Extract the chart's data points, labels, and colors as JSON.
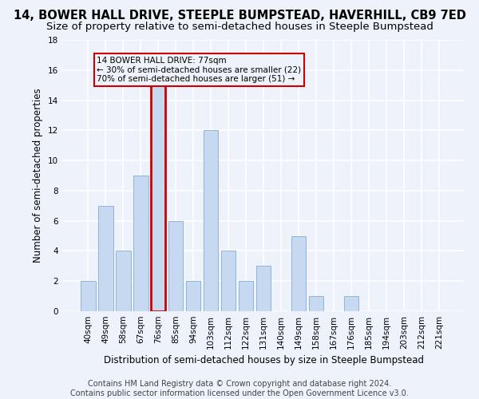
{
  "title": "14, BOWER HALL DRIVE, STEEPLE BUMPSTEAD, HAVERHILL, CB9 7ED",
  "subtitle": "Size of property relative to semi-detached houses in Steeple Bumpstead",
  "xlabel": "Distribution of semi-detached houses by size in Steeple Bumpstead",
  "ylabel": "Number of semi-detached properties",
  "footer": "Contains HM Land Registry data © Crown copyright and database right 2024.\nContains public sector information licensed under the Open Government Licence v3.0.",
  "categories": [
    "40sqm",
    "49sqm",
    "58sqm",
    "67sqm",
    "76sqm",
    "85sqm",
    "94sqm",
    "103sqm",
    "112sqm",
    "122sqm",
    "131sqm",
    "140sqm",
    "149sqm",
    "158sqm",
    "167sqm",
    "176sqm",
    "185sqm",
    "194sqm",
    "203sqm",
    "212sqm",
    "221sqm"
  ],
  "values": [
    2,
    7,
    4,
    9,
    15,
    6,
    2,
    12,
    4,
    2,
    3,
    0,
    5,
    1,
    0,
    1,
    0,
    0,
    0,
    0,
    0
  ],
  "bar_color": "#c6d9f0",
  "bar_edge_color": "#8db4d8",
  "highlight_bar_index": 4,
  "highlight_bar_edge_color": "#cc0000",
  "highlight_bar_edge_width": 2.0,
  "annotation_text": "14 BOWER HALL DRIVE: 77sqm\n← 30% of semi-detached houses are smaller (22)\n70% of semi-detached houses are larger (51) →",
  "annotation_box_color": "#cc0000",
  "ylim": [
    0,
    18
  ],
  "yticks": [
    0,
    2,
    4,
    6,
    8,
    10,
    12,
    14,
    16,
    18
  ],
  "background_color": "#eef2fb",
  "grid_color": "#ffffff",
  "title_fontsize": 10.5,
  "subtitle_fontsize": 9.5,
  "axis_label_fontsize": 8.5,
  "tick_fontsize": 7.5,
  "footer_fontsize": 7.0
}
